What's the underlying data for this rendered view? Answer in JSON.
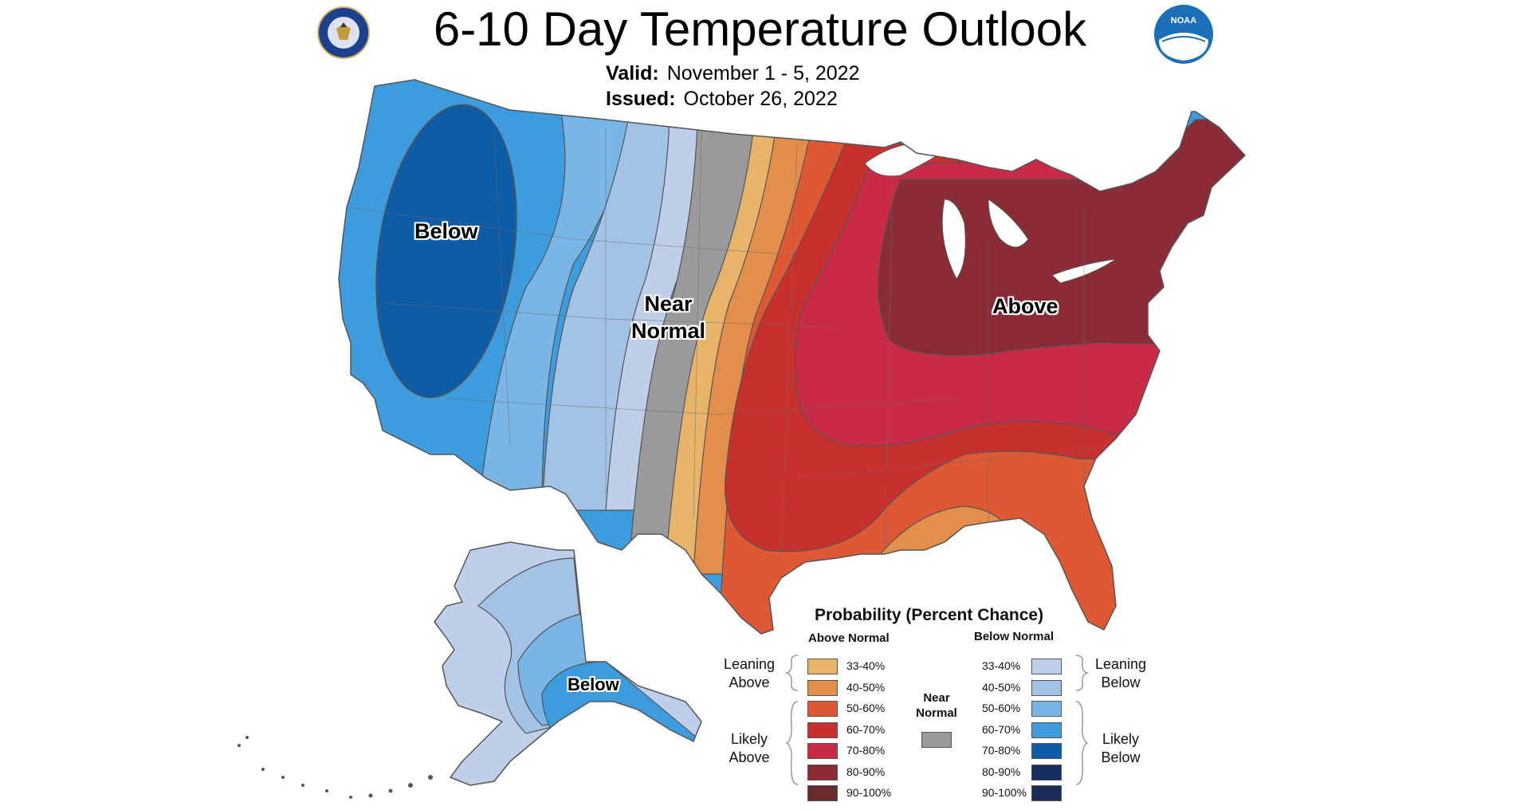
{
  "title": "6-10 Day Temperature Outlook",
  "valid": {
    "label": "Valid:",
    "value": "November 1 - 5, 2022"
  },
  "issued": {
    "label": "Issued:",
    "value": "October 26, 2022"
  },
  "logos": {
    "left": "department-of-commerce-seal",
    "right_text": "NOAA"
  },
  "map_labels": {
    "below_conus": "Below",
    "near_normal": "Near\nNormal",
    "above": "Above",
    "below_alaska": "Below"
  },
  "legend": {
    "title": "Probability (Percent Chance)",
    "above_head": "Above Normal",
    "below_head": "Below Normal",
    "near_normal_label": "Near\nNormal",
    "leaning_above": "Leaning\nAbove",
    "likely_above": "Likely\nAbove",
    "leaning_below": "Leaning\nBelow",
    "likely_below": "Likely\nBelow",
    "above": [
      {
        "range": "33-40%",
        "color": "#E8B46A"
      },
      {
        "range": "40-50%",
        "color": "#E48E4C"
      },
      {
        "range": "50-60%",
        "color": "#DE5933"
      },
      {
        "range": "60-70%",
        "color": "#C8302E"
      },
      {
        "range": "70-80%",
        "color": "#C92B47"
      },
      {
        "range": "80-90%",
        "color": "#8A2B35"
      },
      {
        "range": "90-100%",
        "color": "#6B2A2A"
      }
    ],
    "below": [
      {
        "range": "33-40%",
        "color": "#BFCFEA"
      },
      {
        "range": "40-50%",
        "color": "#A2C3E6"
      },
      {
        "range": "50-60%",
        "color": "#79B6E6"
      },
      {
        "range": "60-70%",
        "color": "#3C9CDD"
      },
      {
        "range": "70-80%",
        "color": "#0D5CA6"
      },
      {
        "range": "80-90%",
        "color": "#142E62"
      },
      {
        "range": "90-100%",
        "color": "#1A2B55"
      }
    ],
    "near_normal_color": "#9A9A9A"
  }
}
